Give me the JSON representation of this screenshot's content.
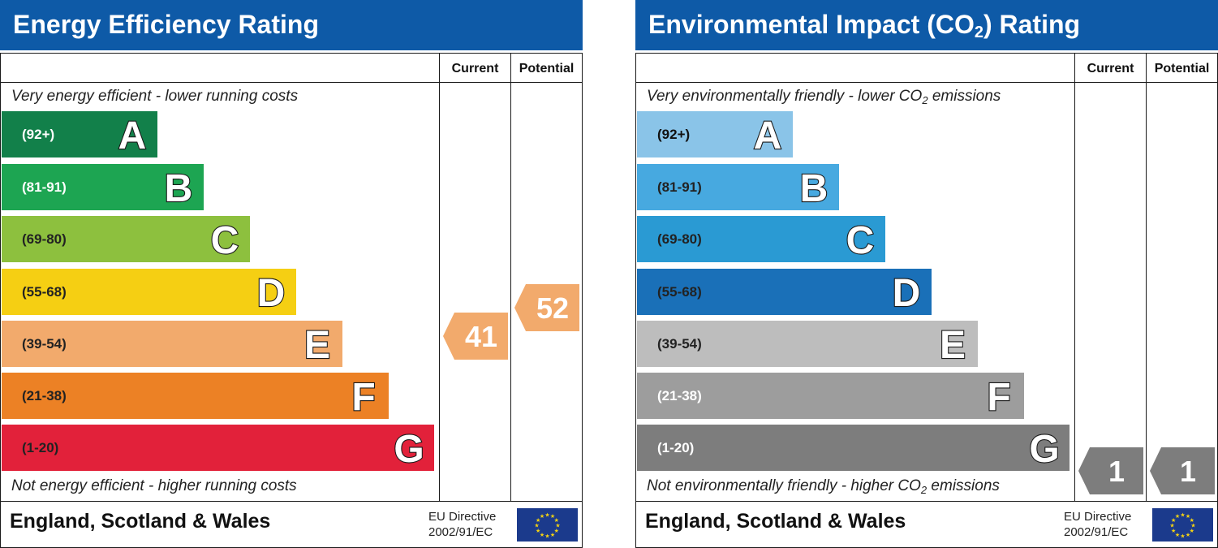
{
  "panels": [
    {
      "title": "Energy Efficiency Rating",
      "title_sub": "",
      "title_after": "",
      "column_current": "Current",
      "column_potential": "Potential",
      "top_caption": "Very energy efficient - lower running costs",
      "top_caption_sub": "",
      "top_caption_after": "",
      "bottom_caption": "Not energy efficient - higher running costs",
      "bottom_caption_sub": "",
      "bottom_caption_after": "",
      "region": "England, Scotland & Wales",
      "eu_line1": "EU Directive",
      "eu_line2": "2002/91/EC",
      "bands": [
        {
          "range": "(92+)",
          "letter": "A",
          "color": "#12804a",
          "text_color": "#ffffff"
        },
        {
          "range": "(81-91)",
          "letter": "B",
          "color": "#1da552",
          "text_color": "#ffffff"
        },
        {
          "range": "(69-80)",
          "letter": "C",
          "color": "#8dc03e",
          "text_color": "#222222"
        },
        {
          "range": "(55-68)",
          "letter": "D",
          "color": "#f5cf13",
          "text_color": "#222222"
        },
        {
          "range": "(39-54)",
          "letter": "E",
          "color": "#f2aa6c",
          "text_color": "#222222"
        },
        {
          "range": "(21-38)",
          "letter": "F",
          "color": "#ec8125",
          "text_color": "#222222"
        },
        {
          "range": "(1-20)",
          "letter": "G",
          "color": "#e2213a",
          "text_color": "#222222"
        }
      ],
      "current": {
        "value": "41",
        "color": "#f2aa6c"
      },
      "potential": {
        "value": "52",
        "color": "#f2aa6c"
      }
    },
    {
      "title": "Environmental Impact (CO",
      "title_sub": "2",
      "title_after": ") Rating",
      "column_current": "Current",
      "column_potential": "Potential",
      "top_caption": "Very environmentally friendly - lower CO",
      "top_caption_sub": "2",
      "top_caption_after": " emissions",
      "bottom_caption": "Not environmentally friendly - higher CO",
      "bottom_caption_sub": "2",
      "bottom_caption_after": " emissions",
      "region": "England, Scotland & Wales",
      "eu_line1": "EU Directive",
      "eu_line2": "2002/91/EC",
      "bands": [
        {
          "range": "(92+)",
          "letter": "A",
          "color": "#8ac4e8",
          "text_color": "#111111"
        },
        {
          "range": "(81-91)",
          "letter": "B",
          "color": "#47a9e0",
          "text_color": "#222222"
        },
        {
          "range": "(69-80)",
          "letter": "C",
          "color": "#2a9ad3",
          "text_color": "#222222"
        },
        {
          "range": "(55-68)",
          "letter": "D",
          "color": "#1a70b8",
          "text_color": "#222222"
        },
        {
          "range": "(39-54)",
          "letter": "E",
          "color": "#bdbdbd",
          "text_color": "#222222"
        },
        {
          "range": "(21-38)",
          "letter": "F",
          "color": "#9d9d9d",
          "text_color": "#ffffff"
        },
        {
          "range": "(1-20)",
          "letter": "G",
          "color": "#7d7d7d",
          "text_color": "#ffffff"
        }
      ],
      "current": {
        "value": "1",
        "color": "#7d7d7d"
      },
      "potential": {
        "value": "1",
        "color": "#7d7d7d"
      }
    }
  ],
  "chart_data": [
    {
      "type": "bar",
      "title": "Energy Efficiency Rating",
      "categories": [
        "A",
        "B",
        "C",
        "D",
        "E",
        "F",
        "G"
      ],
      "ranges": [
        "(92+)",
        "(81-91)",
        "(69-80)",
        "(55-68)",
        "(39-54)",
        "(21-38)",
        "(1-20)"
      ],
      "current": 41,
      "current_band": "E",
      "potential": 52,
      "potential_band": "E"
    },
    {
      "type": "bar",
      "title": "Environmental Impact (CO2) Rating",
      "categories": [
        "A",
        "B",
        "C",
        "D",
        "E",
        "F",
        "G"
      ],
      "ranges": [
        "(92+)",
        "(81-91)",
        "(69-80)",
        "(55-68)",
        "(39-54)",
        "(21-38)",
        "(1-20)"
      ],
      "current": 1,
      "current_band": "G",
      "potential": 1,
      "potential_band": "G"
    }
  ]
}
